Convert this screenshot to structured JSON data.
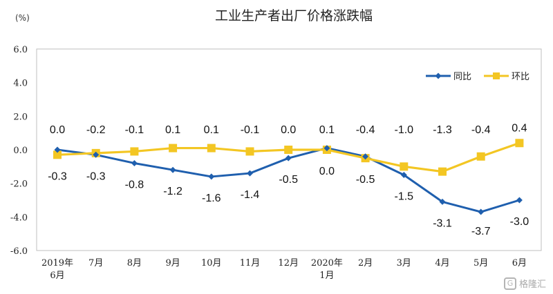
{
  "chart_data": {
    "type": "line",
    "title": "工业生产者出厂价格涨跌幅",
    "unit_label": "(%)",
    "ylim": [
      -6.0,
      6.0
    ],
    "yticks": [
      "6.0",
      "4.0",
      "2.0",
      "0.0",
      "-2.0",
      "-4.0",
      "-6.0"
    ],
    "ytick_values": [
      6,
      4,
      2,
      0,
      -2,
      -4,
      -6
    ],
    "categories": [
      [
        "2019年",
        "6月"
      ],
      [
        "7月"
      ],
      [
        "8月"
      ],
      [
        "9月"
      ],
      [
        "10月"
      ],
      [
        "11月"
      ],
      [
        "12月"
      ],
      [
        "2020年",
        "1月"
      ],
      [
        "2月"
      ],
      [
        "3月"
      ],
      [
        "4月"
      ],
      [
        "5月"
      ],
      [
        "6月"
      ]
    ],
    "grid": false,
    "legend_position": "top-right",
    "series": [
      {
        "name": "同比",
        "color": "#1f5fae",
        "marker": "diamond",
        "values": [
          0.0,
          -0.3,
          -0.8,
          -1.2,
          -1.6,
          -1.4,
          -0.5,
          0.1,
          -0.4,
          -1.5,
          -3.1,
          -3.7,
          -3.0
        ],
        "labels": [
          "0.0",
          "-0.3",
          "-0.8",
          "-1.2",
          "-1.6",
          "-1.4",
          "-0.5",
          "0.1",
          "-0.4",
          "-1.5",
          "-3.1",
          "-3.7",
          "-3.0"
        ]
      },
      {
        "name": "环比",
        "color": "#f3c623",
        "marker": "square",
        "values": [
          -0.3,
          -0.2,
          -0.1,
          0.1,
          0.1,
          -0.1,
          0.0,
          0.0,
          -0.5,
          -1.0,
          -1.3,
          -0.4,
          0.4
        ],
        "labels": [
          "-0.3",
          "-0.2",
          "-0.1",
          "0.1",
          "0.1",
          "-0.1",
          "0.0",
          "0.0",
          "-0.5",
          "-1.0",
          "-1.3",
          "-0.4",
          "0.4"
        ]
      }
    ]
  },
  "watermark": {
    "icon": "G",
    "text": "格隆汇"
  }
}
